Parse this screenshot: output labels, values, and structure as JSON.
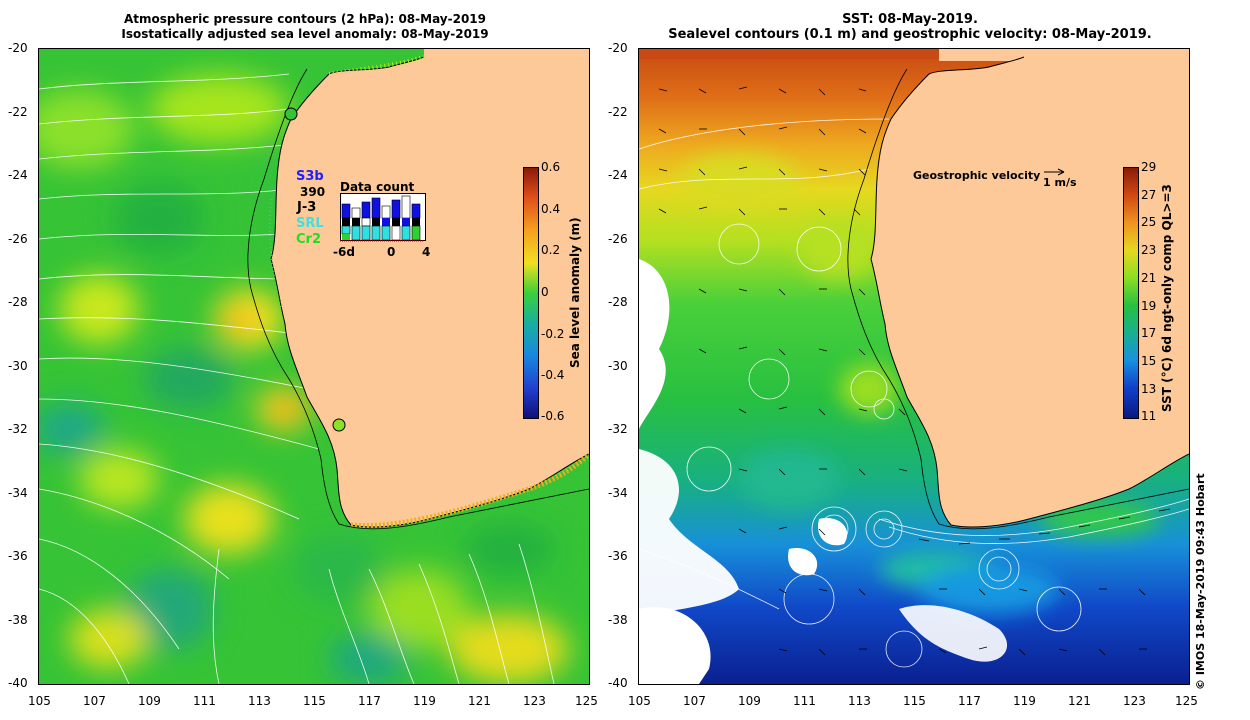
{
  "left_panel": {
    "title_line1": "Atmospheric pressure contours (2 hPa): 08-May-2019",
    "title_line2": "Isostatically adjusted sea level anomaly: 08-May-2019",
    "satellites": [
      {
        "label": "S3b",
        "color": "#2020ff"
      },
      {
        "label": "390",
        "color": "#000000"
      },
      {
        "label": "J-3",
        "color": "#000000"
      },
      {
        "label": "SRL",
        "color": "#40e0e0"
      },
      {
        "label": "Cr2",
        "color": "#22dd22"
      }
    ],
    "data_count": {
      "title": "Data count",
      "ticks": [
        "-6d",
        "0",
        "4"
      ]
    },
    "colorbar": {
      "title": "Sea level anomaly (m)",
      "ticks": [
        "0.6",
        "0.4",
        "0.2",
        "0",
        "-0.2",
        "-0.4",
        "-0.6"
      ],
      "range": [
        -0.6,
        0.6
      ]
    }
  },
  "right_panel": {
    "title_line1": "SST: 08-May-2019.",
    "title_line2": "Sealevel contours (0.1 m) and geostrophic velocity: 08-May-2019.",
    "legend_label": "Geostrophic velocity",
    "legend_unit": "1 m/s",
    "colorbar": {
      "title": "SST (°C) 6d ngt-only comp QL>=3",
      "ticks": [
        "29",
        "27",
        "25",
        "23",
        "21",
        "19",
        "17",
        "15",
        "13",
        "11"
      ],
      "range": [
        11,
        29
      ]
    }
  },
  "axes": {
    "lat_ticks": [
      "-20",
      "-22",
      "-24",
      "-26",
      "-28",
      "-30",
      "-32",
      "-34",
      "-36",
      "-38",
      "-40"
    ],
    "lon_ticks": [
      "105",
      "107",
      "109",
      "111",
      "113",
      "115",
      "117",
      "119",
      "121",
      "123",
      "125"
    ],
    "lat_range": [
      -40,
      -20
    ],
    "lon_range": [
      105,
      125
    ]
  },
  "credit": "© IMOS 18-May-2019 09:43 Hobart",
  "colors": {
    "land": "#fdc998",
    "ocean_green": "#3ac83a",
    "coast": "#000000"
  }
}
